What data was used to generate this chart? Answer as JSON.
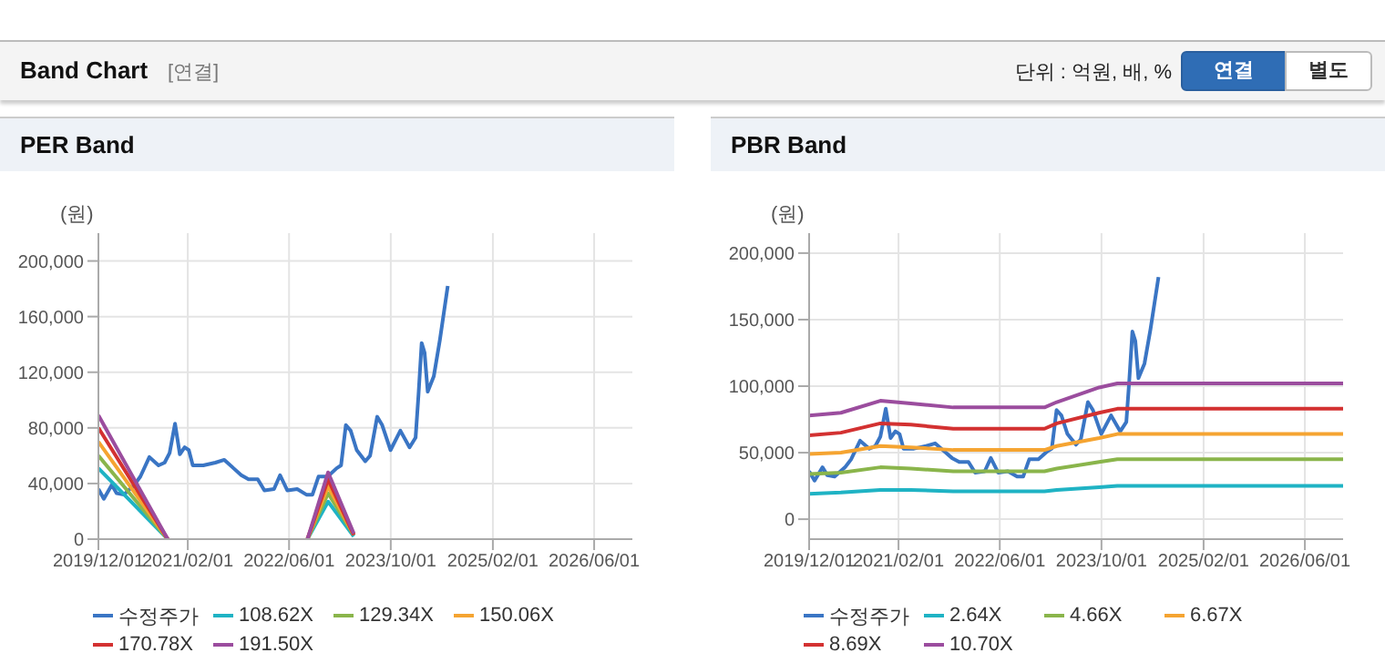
{
  "chart_data": [
    {
      "type": "other",
      "title": "Band Chart",
      "annotations": [
        "[연결]",
        "단위 : 억원, 배, %",
        "연결",
        "별도"
      ]
    },
    {
      "type": "line",
      "title": "PER Band",
      "ylabel": "(원)",
      "xlim": [
        "2019-12-01",
        "2026-12-01"
      ],
      "ylim": [
        0,
        220000
      ],
      "xticks": [
        {
          "value": "2019-12-01",
          "label": "2019/12/01"
        },
        {
          "value": "2021-02-01",
          "label": "2021/02/01"
        },
        {
          "value": "2022-06-01",
          "label": "2022/06/01"
        },
        {
          "value": "2023-10-01",
          "label": "2023/10/01"
        },
        {
          "value": "2025-02-01",
          "label": "2025/02/01"
        },
        {
          "value": "2026-06-01",
          "label": "2026/06/01"
        }
      ],
      "yticks": [
        0,
        {
          "value": 40000,
          "label": "40,000"
        },
        {
          "value": 80000,
          "label": "80,000"
        },
        {
          "value": 120000,
          "label": "120,000"
        },
        {
          "value": 160000,
          "label": "160,000"
        },
        {
          "value": 200000,
          "label": "200,000"
        }
      ],
      "grid": true,
      "legend": "bottom",
      "series": [
        {
          "name": "수정주가",
          "color": "#3a75c4",
          "x": [
            "2019-12-01",
            "2019-12-27",
            "2020-02-03",
            "2020-02-26",
            "2020-04-01",
            "2020-05-21",
            "2020-06-19",
            "2020-08-01",
            "2020-09-14",
            "2020-10-13",
            "2020-11-06",
            "2020-12-02",
            "2020-12-25",
            "2021-01-17",
            "2021-02-06",
            "2021-02-25",
            "2021-04-16",
            "2021-06-13",
            "2021-07-26",
            "2021-09-08",
            "2021-10-15",
            "2021-11-19",
            "2022-01-02",
            "2022-02-03",
            "2022-03-21",
            "2022-04-19",
            "2022-05-24",
            "2022-07-10",
            "2022-08-23",
            "2022-09-21",
            "2022-10-20",
            "2022-12-03",
            "2023-01-15",
            "2023-02-05",
            "2023-02-28",
            "2023-03-23",
            "2023-04-21",
            "2023-06-01",
            "2023-06-24",
            "2023-07-28",
            "2023-08-21",
            "2023-09-30",
            "2023-11-16",
            "2023-12-30",
            "2024-01-28",
            "2024-02-11",
            "2024-02-26",
            "2024-03-11",
            "2024-03-26",
            "2024-04-24",
            "2024-05-23",
            "2024-06-30"
          ],
          "values": [
            36000,
            29000,
            39000,
            33000,
            32000,
            39000,
            45000,
            59000,
            53000,
            55000,
            62000,
            83000,
            61000,
            66000,
            64000,
            53000,
            53000,
            55000,
            57000,
            51000,
            46000,
            43000,
            43000,
            35000,
            36000,
            46000,
            35000,
            36000,
            32000,
            32000,
            45000,
            45000,
            51000,
            53000,
            82000,
            78000,
            64000,
            56000,
            60000,
            88000,
            82000,
            64000,
            78000,
            66000,
            73000,
            104000,
            141000,
            134000,
            106000,
            117000,
            143000,
            182000
          ]
        },
        {
          "name": "108.62X",
          "color": "#1fb3c4",
          "x": [
            "2019-12-01",
            "2020-10-28",
            "2021-09-01",
            "2022-08-28",
            "2022-12-05",
            "2023-04-07"
          ],
          "values": [
            51000,
            0,
            null,
            0,
            27000,
            2000
          ]
        },
        {
          "name": "129.34X",
          "color": "#8ab54b",
          "x": [
            "2019-12-01",
            "2020-10-28",
            "2021-09-01",
            "2022-08-28",
            "2022-12-05",
            "2023-04-07"
          ],
          "values": [
            60000,
            0,
            null,
            0,
            33000,
            3000
          ]
        },
        {
          "name": "150.06X",
          "color": "#f5a431",
          "x": [
            "2019-12-01",
            "2020-10-28",
            "2021-09-01",
            "2022-08-28",
            "2022-12-05",
            "2023-04-07"
          ],
          "values": [
            70000,
            0,
            null,
            0,
            38000,
            3000
          ]
        },
        {
          "name": "170.78X",
          "color": "#d33131",
          "x": [
            "2019-12-01",
            "2020-10-28",
            "2021-09-01",
            "2022-08-28",
            "2022-12-05",
            "2023-04-07"
          ],
          "values": [
            80000,
            0,
            null,
            0,
            43000,
            3000
          ]
        },
        {
          "name": "191.50X",
          "color": "#9b4d9e",
          "x": [
            "2019-12-01",
            "2020-10-28",
            "2021-09-01",
            "2022-08-28",
            "2022-12-05",
            "2023-04-07"
          ],
          "values": [
            89000,
            0,
            null,
            0,
            48000,
            4000
          ]
        }
      ]
    },
    {
      "type": "line",
      "title": "PBR Band",
      "ylabel": "(원)",
      "xlim": [
        "2019-12-01",
        "2026-12-01"
      ],
      "ylim": [
        -15000,
        215000
      ],
      "xticks": [
        {
          "value": "2019-12-01",
          "label": "2019/12/01"
        },
        {
          "value": "2021-02-01",
          "label": "2021/02/01"
        },
        {
          "value": "2022-06-01",
          "label": "2022/06/01"
        },
        {
          "value": "2023-10-01",
          "label": "2023/10/01"
        },
        {
          "value": "2025-02-01",
          "label": "2025/02/01"
        },
        {
          "value": "2026-06-01",
          "label": "2026/06/01"
        }
      ],
      "yticks": [
        0,
        {
          "value": 50000,
          "label": "50,000"
        },
        {
          "value": 100000,
          "label": "100,000"
        },
        {
          "value": 150000,
          "label": "150,000"
        },
        {
          "value": 200000,
          "label": "200,000"
        }
      ],
      "grid": true,
      "legend": "bottom",
      "series": [
        {
          "name": "수정주가",
          "color": "#3a75c4",
          "x": [
            "2019-12-01",
            "2019-12-27",
            "2020-02-03",
            "2020-02-26",
            "2020-04-01",
            "2020-05-21",
            "2020-06-19",
            "2020-08-01",
            "2020-09-14",
            "2020-10-13",
            "2020-11-06",
            "2020-12-02",
            "2020-12-25",
            "2021-01-17",
            "2021-02-06",
            "2021-02-25",
            "2021-04-16",
            "2021-06-13",
            "2021-07-26",
            "2021-09-08",
            "2021-10-15",
            "2021-11-19",
            "2022-01-02",
            "2022-02-03",
            "2022-03-21",
            "2022-04-19",
            "2022-05-24",
            "2022-07-10",
            "2022-08-23",
            "2022-09-21",
            "2022-10-20",
            "2022-12-03",
            "2023-01-15",
            "2023-02-05",
            "2023-02-28",
            "2023-03-23",
            "2023-04-21",
            "2023-06-01",
            "2023-06-24",
            "2023-07-28",
            "2023-08-21",
            "2023-09-30",
            "2023-11-16",
            "2023-12-30",
            "2024-01-28",
            "2024-02-11",
            "2024-02-26",
            "2024-03-11",
            "2024-03-26",
            "2024-04-24",
            "2024-05-23",
            "2024-06-30"
          ],
          "values": [
            36000,
            29000,
            39000,
            33000,
            32000,
            39000,
            45000,
            59000,
            53000,
            55000,
            62000,
            83000,
            61000,
            66000,
            64000,
            53000,
            53000,
            55000,
            57000,
            51000,
            46000,
            43000,
            43000,
            35000,
            36000,
            46000,
            35000,
            36000,
            32000,
            32000,
            45000,
            45000,
            51000,
            53000,
            82000,
            78000,
            64000,
            56000,
            60000,
            88000,
            82000,
            64000,
            78000,
            66000,
            73000,
            104000,
            141000,
            134000,
            106000,
            117000,
            143000,
            182000
          ]
        },
        {
          "name": "2.64X",
          "color": "#1fb3c4",
          "x": [
            "2019-12-01",
            "2020-05-01",
            "2020-11-06",
            "2021-04-01",
            "2021-10-21",
            "2023-01-01",
            "2023-03-01",
            "2023-09-20",
            "2023-12-16",
            "2026-12-01"
          ],
          "values": [
            19000,
            20000,
            22000,
            22000,
            21000,
            21000,
            22000,
            24000,
            25000,
            25000
          ]
        },
        {
          "name": "4.66X",
          "color": "#8ab54b",
          "x": [
            "2019-12-01",
            "2020-05-01",
            "2020-11-06",
            "2021-04-01",
            "2021-10-21",
            "2023-01-01",
            "2023-03-01",
            "2023-09-20",
            "2023-12-16",
            "2026-12-01"
          ],
          "values": [
            34000,
            35000,
            39000,
            38000,
            36000,
            36000,
            38000,
            43000,
            45000,
            45000
          ]
        },
        {
          "name": "6.67X",
          "color": "#f5a431",
          "x": [
            "2019-12-01",
            "2020-05-01",
            "2020-11-06",
            "2021-04-01",
            "2021-10-21",
            "2023-01-01",
            "2023-03-01",
            "2023-09-20",
            "2023-12-16",
            "2026-12-01"
          ],
          "values": [
            49000,
            50000,
            55000,
            54000,
            52000,
            52000,
            55000,
            61000,
            64000,
            64000
          ]
        },
        {
          "name": "8.69X",
          "color": "#d33131",
          "x": [
            "2019-12-01",
            "2020-05-01",
            "2020-11-06",
            "2021-04-01",
            "2021-10-21",
            "2023-01-01",
            "2023-03-01",
            "2023-09-20",
            "2023-12-16",
            "2026-12-01"
          ],
          "values": [
            63000,
            65000,
            72000,
            71000,
            68000,
            68000,
            72000,
            80000,
            83000,
            83000
          ]
        },
        {
          "name": "10.70X",
          "color": "#9b4d9e",
          "x": [
            "2019-12-01",
            "2020-05-01",
            "2020-11-06",
            "2021-04-01",
            "2021-10-21",
            "2023-01-01",
            "2023-03-01",
            "2023-09-20",
            "2023-12-16",
            "2026-12-01"
          ],
          "values": [
            78000,
            80000,
            89000,
            87000,
            84000,
            84000,
            88000,
            99000,
            102000,
            102000
          ]
        }
      ]
    }
  ]
}
